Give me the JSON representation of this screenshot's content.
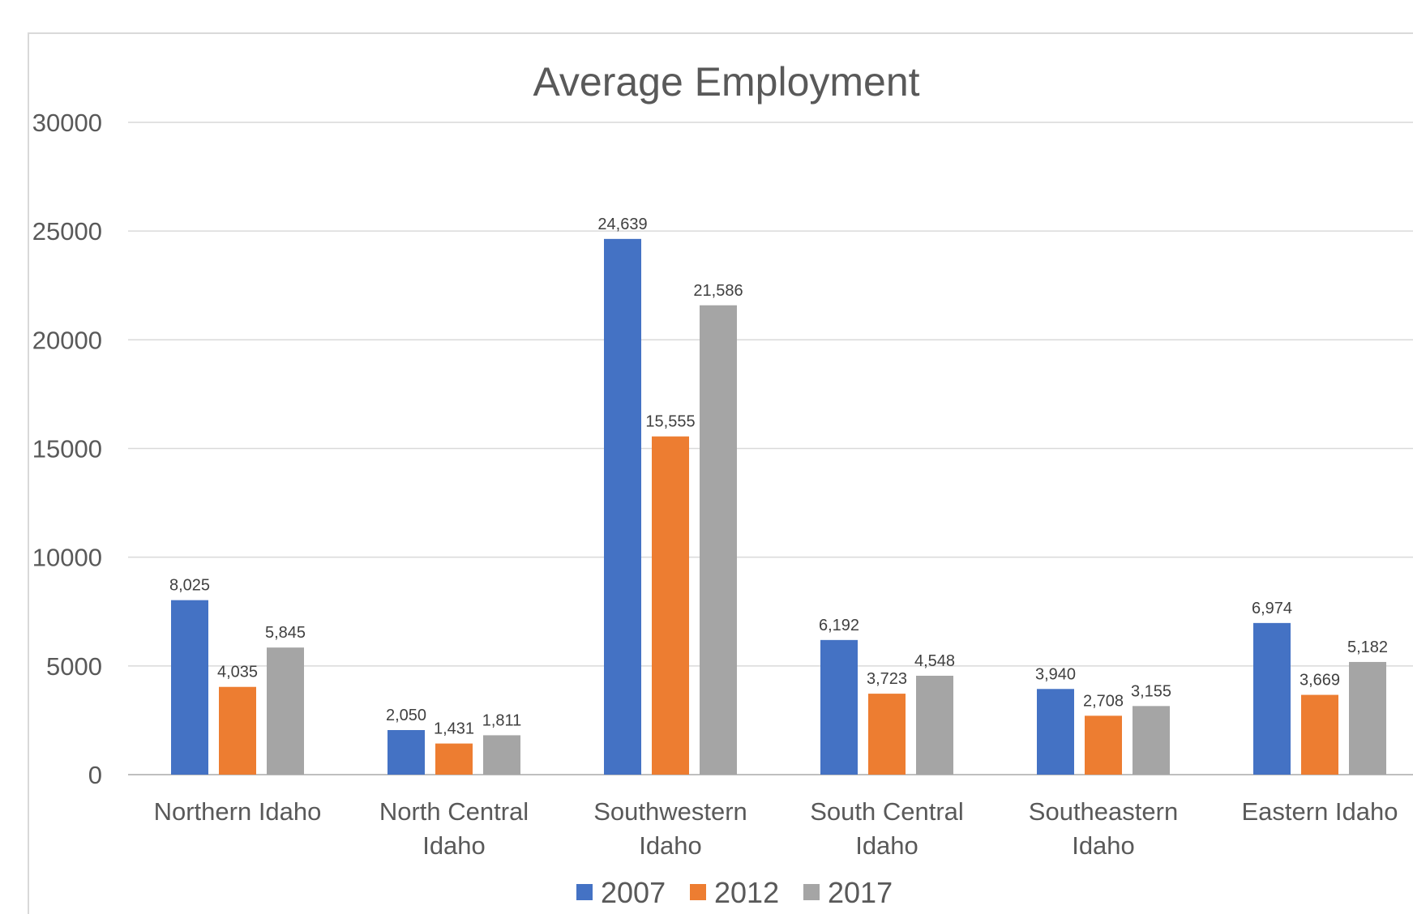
{
  "chart_data": {
    "type": "bar",
    "title": "Average Employment",
    "xlabel": "",
    "ylabel": "",
    "ylim": [
      0,
      30000
    ],
    "yticks": [
      "0",
      "5000",
      "10000",
      "15000",
      "20000",
      "25000",
      "30000"
    ],
    "grid": true,
    "legend_position": "bottom",
    "categories": [
      [
        "Northern Idaho"
      ],
      [
        "North Central",
        "Idaho"
      ],
      [
        "Southwestern",
        "Idaho"
      ],
      [
        "South Central",
        "Idaho"
      ],
      [
        "Southeastern",
        "Idaho"
      ],
      [
        "Eastern Idaho"
      ]
    ],
    "series": [
      {
        "name": "2007",
        "color": "#4472c4",
        "values": [
          8025,
          2050,
          24639,
          6192,
          3940,
          6974
        ],
        "labels": [
          "8,025",
          "2,050",
          "24,639",
          "6,192",
          "3,940",
          "6,974"
        ]
      },
      {
        "name": "2012",
        "color": "#ed7d31",
        "values": [
          4035,
          1431,
          15555,
          3723,
          2708,
          3669
        ],
        "labels": [
          "4,035",
          "1,431",
          "15,555",
          "3,723",
          "2,708",
          "3,669"
        ]
      },
      {
        "name": "2017",
        "color": "#a5a5a5",
        "values": [
          5845,
          1811,
          21586,
          4548,
          3155,
          5182
        ],
        "labels": [
          "5,845",
          "1,811",
          "21,586",
          "4,548",
          "3,155",
          "5,182"
        ]
      }
    ]
  }
}
